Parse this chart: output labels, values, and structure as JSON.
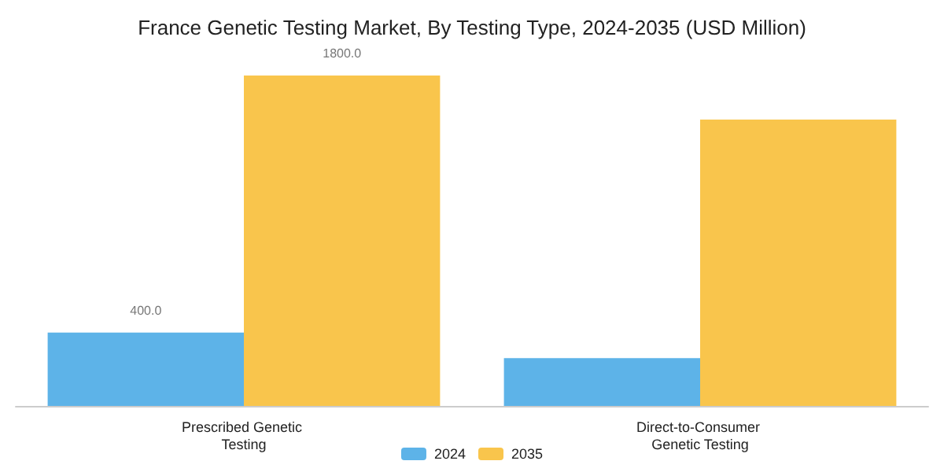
{
  "chart_data": {
    "type": "bar",
    "title": "France Genetic Testing Market, By Testing Type, 2024-2035 (USD Million)",
    "categories": [
      "Prescribed Genetic Testing",
      "Direct-to-Consumer Genetic Testing"
    ],
    "series": [
      {
        "name": "2024",
        "color": "#5db3e8",
        "values": [
          400,
          260
        ],
        "value_labels": [
          "400.0",
          null
        ]
      },
      {
        "name": "2035",
        "color": "#f9c54c",
        "values": [
          1800,
          1560
        ],
        "value_labels": [
          "1800.0",
          null
        ]
      }
    ],
    "legend": "bottom",
    "grid": false
  }
}
